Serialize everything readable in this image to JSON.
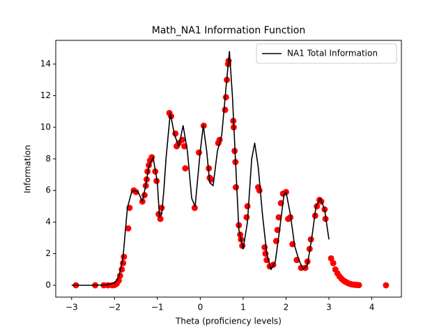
{
  "chart_data": {
    "type": "line",
    "title": "Math_NA1 Information Function",
    "xlabel": "Theta (proficiency levels)",
    "ylabel": "Information",
    "xlim": [
      -3.37,
      4.69
    ],
    "ylim": [
      -0.75,
      15.5
    ],
    "xticks": [
      {
        "value": -3,
        "label": "−3"
      },
      {
        "value": -2,
        "label": "−2"
      },
      {
        "value": -1,
        "label": "−1"
      },
      0,
      1,
      2,
      3,
      4
    ],
    "yticks": [
      0,
      2,
      4,
      6,
      8,
      10,
      12,
      14
    ],
    "legend": "upper right",
    "series": [
      {
        "name": "NA1 Total Information",
        "color": "#000000",
        "x": [
          -3,
          -2.5,
          -2.2,
          -2.0,
          -1.9,
          -1.8,
          -1.7,
          -1.6,
          -1.55,
          -1.45,
          -1.35,
          -1.28,
          -1.2,
          -1.1,
          -1.0,
          -0.95,
          -0.9,
          -0.85,
          -0.8,
          -0.7,
          -0.6,
          -0.5,
          -0.4,
          -0.3,
          -0.2,
          -0.12,
          0,
          0.07,
          0.15,
          0.22,
          0.3,
          0.4,
          0.5,
          0.6,
          0.68,
          0.75,
          0.82,
          0.9,
          1.0,
          1.1,
          1.2,
          1.27,
          1.35,
          1.45,
          1.55,
          1.65,
          1.75,
          1.85,
          1.95,
          2.0,
          2.1,
          2.2,
          2.3,
          2.4,
          2.5,
          2.6,
          2.7,
          2.8,
          2.9,
          3.0
        ],
        "values": [
          0,
          0,
          0.02,
          0.15,
          0.5,
          1.8,
          4.9,
          5.9,
          6.0,
          5.9,
          5.3,
          6.2,
          7.5,
          8.1,
          6.5,
          4.3,
          4.5,
          6.0,
          8.0,
          10.9,
          9.5,
          8.8,
          10.1,
          8.5,
          5.5,
          5.0,
          8.5,
          10.1,
          8.5,
          6.5,
          6.3,
          8.5,
          9.5,
          12.5,
          14.8,
          12.0,
          8.0,
          3.5,
          2.3,
          4.0,
          8.0,
          9.0,
          7.5,
          4.5,
          2.0,
          1.0,
          1.5,
          3.5,
          5.7,
          5.9,
          4.5,
          2.5,
          1.6,
          1.0,
          1.3,
          3.0,
          5.0,
          5.5,
          4.8,
          2.9
        ]
      }
    ],
    "points": {
      "color": "#ff0000",
      "x": [
        -2.9,
        -2.45,
        -2.25,
        -2.15,
        -2.05,
        -2.0,
        -1.95,
        -1.9,
        -1.87,
        -1.83,
        -1.8,
        -1.78,
        -1.68,
        -1.65,
        -1.55,
        -1.5,
        -1.35,
        -1.3,
        -1.27,
        -1.25,
        -1.23,
        -1.2,
        -1.17,
        -1.13,
        -1.05,
        -1.02,
        -0.97,
        -0.93,
        -0.9,
        -0.72,
        -0.68,
        -0.58,
        -0.55,
        -0.5,
        -0.42,
        -0.37,
        -0.35,
        -0.13,
        -0.03,
        0.08,
        0.2,
        0.22,
        0.25,
        0.42,
        0.45,
        0.58,
        0.6,
        0.62,
        0.65,
        0.66,
        0.77,
        0.78,
        0.8,
        0.82,
        0.83,
        0.9,
        0.93,
        0.95,
        0.98,
        1.08,
        1.1,
        1.35,
        1.38,
        1.5,
        1.52,
        1.55,
        1.62,
        1.7,
        1.77,
        1.8,
        1.83,
        1.88,
        1.93,
        2.0,
        2.05,
        2.1,
        2.15,
        2.25,
        2.35,
        2.45,
        2.5,
        2.55,
        2.58,
        2.68,
        2.72,
        2.78,
        2.82,
        2.9,
        2.92,
        3.05,
        3.1,
        3.15,
        3.2,
        3.25,
        3.3,
        3.35,
        3.4,
        3.45,
        3.5,
        3.55,
        3.6,
        3.65,
        3.7,
        4.33
      ],
      "y": [
        0,
        0,
        0,
        0,
        0,
        0.02,
        0.1,
        0.3,
        0.6,
        1.0,
        1.4,
        1.8,
        3.6,
        4.9,
        6.0,
        5.9,
        5.3,
        5.7,
        6.3,
        6.7,
        7.2,
        7.6,
        7.9,
        8.1,
        7.2,
        6.6,
        4.5,
        4.2,
        4.9,
        10.9,
        10.7,
        9.6,
        8.8,
        9.0,
        9.2,
        8.8,
        7.4,
        4.9,
        8.4,
        10.1,
        7.4,
        6.8,
        6.7,
        9.0,
        9.2,
        11.1,
        11.9,
        13,
        14,
        14.2,
        10.4,
        10,
        8.5,
        7.8,
        6.2,
        3.8,
        3.2,
        2.9,
        2.5,
        4.3,
        5.0,
        6.2,
        6.0,
        2.4,
        2.0,
        1.6,
        1.2,
        1.3,
        2.8,
        3.5,
        4.3,
        5.2,
        5.8,
        5.9,
        4.2,
        4.3,
        2.6,
        1.6,
        1.1,
        1.1,
        1.5,
        2.3,
        2.9,
        4.4,
        5.0,
        5.4,
        5.3,
        4.8,
        4.2,
        1.7,
        1.4,
        1.0,
        0.75,
        0.55,
        0.4,
        0.28,
        0.2,
        0.13,
        0.08,
        0.05,
        0.03,
        0.02,
        0.01,
        0
      ]
    }
  }
}
